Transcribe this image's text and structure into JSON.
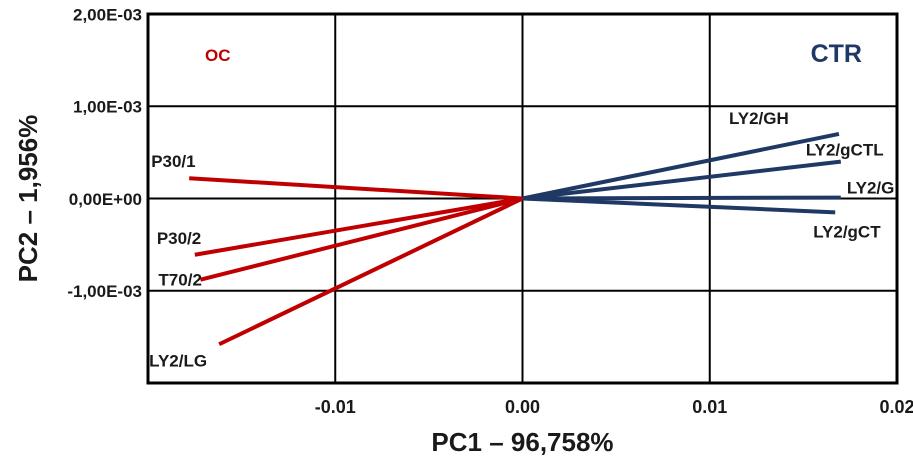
{
  "chart_data": {
    "type": "biplot",
    "xlabel": "PC1 – 96,758%",
    "ylabel": "PC2 – 1,956%",
    "xlim": [
      -0.02,
      0.02
    ],
    "ylim": [
      -0.002,
      0.002
    ],
    "x_ticks": [
      {
        "value": -0.01,
        "label": "-0.01"
      },
      {
        "value": 0.0,
        "label": "0.00"
      },
      {
        "value": 0.01,
        "label": "0.01"
      },
      {
        "value": 0.02,
        "label": "0.02"
      }
    ],
    "y_ticks": [
      {
        "value": 0.002,
        "label": "2,00E-03"
      },
      {
        "value": 0.001,
        "label": "1,00E-03"
      },
      {
        "value": 0.0,
        "label": "0,00E+00"
      },
      {
        "value": -0.001,
        "label": "-1,00E-03"
      }
    ],
    "grid": true,
    "groups": [
      {
        "label": "OC",
        "color": "#c00000",
        "corner": "top-left"
      },
      {
        "label": "CTR",
        "color": "#1f3864",
        "corner": "top-right"
      }
    ],
    "vectors": [
      {
        "name": "P30/1",
        "group": 0,
        "x": -0.0178,
        "y": 0.00022,
        "label_side": "left-above"
      },
      {
        "name": "P30/2",
        "group": 0,
        "x": -0.0175,
        "y": -0.00061,
        "label_side": "left-above"
      },
      {
        "name": "T70/2",
        "group": 0,
        "x": -0.0172,
        "y": -0.00088,
        "label_side": "left"
      },
      {
        "name": "LY2/LG",
        "group": 0,
        "x": -0.0162,
        "y": -0.00158,
        "label_side": "left-below"
      },
      {
        "name": "LY2/GH",
        "group": 1,
        "x": 0.0169,
        "y": 0.0007,
        "label_side": "left-above"
      },
      {
        "name": "LY2/gCTL",
        "group": 1,
        "x": 0.017,
        "y": 0.0004,
        "label_side": "above"
      },
      {
        "name": "LY2/G",
        "group": 1,
        "x": 0.017,
        "y": 1e-05,
        "label_side": "above"
      },
      {
        "name": "LY2/gCT",
        "group": 1,
        "x": 0.0167,
        "y": -0.00015,
        "label_side": "below"
      }
    ]
  }
}
